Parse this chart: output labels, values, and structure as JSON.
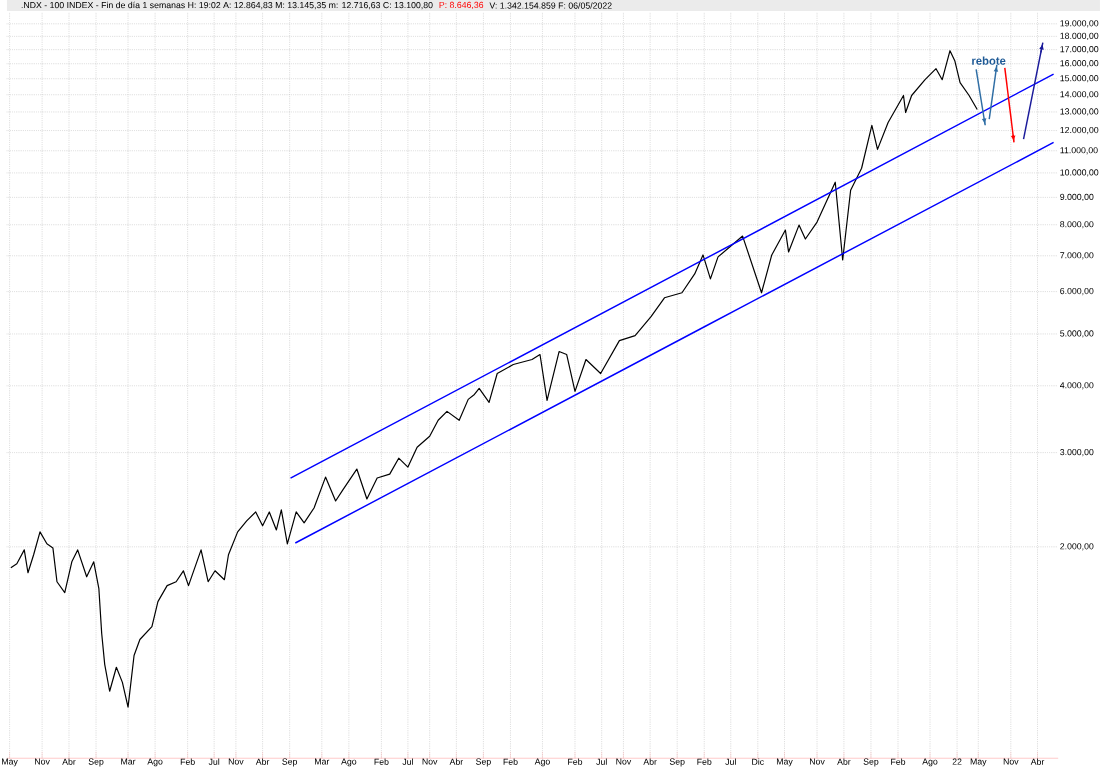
{
  "chart_data": {
    "type": "line",
    "title": ".NDX - 100 INDEX - Fin de día 1 semanas  H: 19:02  A: 12.864,83  M: 13.145,35  m: 12.716,63  C: 13.100,80",
    "annotations": [
      "P: 8.646,36",
      "V: 1.342.154.859  F: 06/05/2022",
      "rebote"
    ],
    "log": true,
    "grid": true,
    "marker": "none",
    "line_style": "solid",
    "xlim": [
      "2007-04-15",
      "2023-07-27"
    ],
    "ylim": [
      805,
      20000
    ],
    "xticks": [
      {
        "value": "2007-05-01",
        "label": "May"
      },
      {
        "value": "2007-11-01",
        "label": "Nov"
      },
      {
        "value": "2008-04-01",
        "label": "Abr"
      },
      {
        "value": "2008-09-01",
        "label": "Sep"
      },
      {
        "value": "2009-03-01",
        "label": "Mar"
      },
      {
        "value": "2009-08-01",
        "label": "Ago"
      },
      {
        "value": "2010-02-01",
        "label": "Feb"
      },
      {
        "value": "2010-07-01",
        "label": "Jul"
      },
      {
        "value": "2010-11-01",
        "label": "Nov"
      },
      {
        "value": "2011-04-01",
        "label": "Abr"
      },
      {
        "value": "2011-09-01",
        "label": "Sep"
      },
      {
        "value": "2012-03-01",
        "label": "Mar"
      },
      {
        "value": "2012-08-01",
        "label": "Ago"
      },
      {
        "value": "2013-02-01",
        "label": "Feb"
      },
      {
        "value": "2013-07-01",
        "label": "Jul"
      },
      {
        "value": "2013-11-01",
        "label": "Nov"
      },
      {
        "value": "2014-04-01",
        "label": "Abr"
      },
      {
        "value": "2014-09-01",
        "label": "Sep"
      },
      {
        "value": "2015-02-01",
        "label": "Feb"
      },
      {
        "value": "2015-08-01",
        "label": "Ago"
      },
      {
        "value": "2016-02-01",
        "label": "Feb"
      },
      {
        "value": "2016-07-01",
        "label": "Jul"
      },
      {
        "value": "2016-11-01",
        "label": "Nov"
      },
      {
        "value": "2017-04-01",
        "label": "Abr"
      },
      {
        "value": "2017-09-01",
        "label": "Sep"
      },
      {
        "value": "2018-02-01",
        "label": "Feb"
      },
      {
        "value": "2018-07-01",
        "label": "Jul"
      },
      {
        "value": "2018-12-01",
        "label": "Dic"
      },
      {
        "value": "2019-05-01",
        "label": "May"
      },
      {
        "value": "2019-11-01",
        "label": "Nov"
      },
      {
        "value": "2020-04-01",
        "label": "Abr"
      },
      {
        "value": "2020-09-01",
        "label": "Sep"
      },
      {
        "value": "2021-02-01",
        "label": "Feb"
      },
      {
        "value": "2021-08-01",
        "label": "Ago"
      },
      {
        "value": "2022-01-01",
        "label": "22"
      },
      {
        "value": "2022-05-01",
        "label": "May"
      },
      {
        "value": "2022-11-01",
        "label": "Nov"
      },
      {
        "value": "2023-04-01",
        "label": "Abr"
      }
    ],
    "yticks": [
      {
        "value": 2000,
        "label": "2.000,00"
      },
      {
        "value": 3000,
        "label": "3.000,00"
      },
      {
        "value": 4000,
        "label": "4.000,00"
      },
      {
        "value": 5000,
        "label": "5.000,00"
      },
      {
        "value": 6000,
        "label": "6.000,00"
      },
      {
        "value": 7000,
        "label": "7.000,00"
      },
      {
        "value": 8000,
        "label": "8.000,00"
      },
      {
        "value": 9000,
        "label": "9.000,00"
      },
      {
        "value": 10000,
        "label": "10.000,00"
      },
      {
        "value": 11000,
        "label": "11.000,00"
      },
      {
        "value": 12000,
        "label": "12.000,00"
      },
      {
        "value": 13000,
        "label": "13.000,00"
      },
      {
        "value": 14000,
        "label": "14.000,00"
      },
      {
        "value": 15000,
        "label": "15.000,00"
      },
      {
        "value": 16000,
        "label": "16.000,00"
      },
      {
        "value": 17000,
        "label": "17.000,00"
      },
      {
        "value": 18000,
        "label": "18.000,00"
      },
      {
        "value": 19000,
        "label": "19.000,00"
      }
    ],
    "series": [
      {
        "color": "#000000",
        "x": [
          "2007-05-08",
          "2007-06-11",
          "2007-07-23",
          "2007-08-13",
          "2007-09-14",
          "2007-10-20",
          "2007-11-28",
          "2008-01-01",
          "2008-01-24",
          "2008-03-08",
          "2008-04-17",
          "2008-05-20",
          "2008-07-10",
          "2008-08-19",
          "2008-09-17",
          "2008-10-03",
          "2008-10-20",
          "2008-11-17",
          "2008-12-25",
          "2009-01-28",
          "2009-03-01",
          "2009-04-04",
          "2009-05-07",
          "2009-07-14",
          "2009-08-17",
          "2009-10-08",
          "2009-11-28",
          "2010-01-08",
          "2010-02-06",
          "2010-04-18",
          "2010-05-28",
          "2010-07-06",
          "2010-08-28",
          "2010-09-20",
          "2010-11-11",
          "2011-01-01",
          "2011-02-21",
          "2011-04-01",
          "2011-05-09",
          "2011-06-18",
          "2011-07-16",
          "2011-08-19",
          "2011-10-08",
          "2011-11-22",
          "2012-01-17",
          "2012-03-22",
          "2012-05-18",
          "2012-06-27",
          "2012-09-15",
          "2012-11-11",
          "2013-01-08",
          "2013-03-20",
          "2013-05-10",
          "2013-07-01",
          "2013-08-22",
          "2013-11-01",
          "2013-12-19",
          "2014-02-07",
          "2014-04-17",
          "2014-06-07",
          "2014-07-12",
          "2014-08-08",
          "2014-10-03",
          "2014-11-18",
          "2015-02-17",
          "2015-06-03",
          "2015-07-18",
          "2015-08-27",
          "2015-11-03",
          "2015-12-16",
          "2016-02-01",
          "2016-04-03",
          "2016-06-25",
          "2016-10-09",
          "2017-01-06",
          "2017-04-06",
          "2017-06-21",
          "2017-09-28",
          "2017-12-09",
          "2018-01-25",
          "2018-03-08",
          "2018-04-20",
          "2018-09-06",
          "2018-12-22",
          "2019-02-18",
          "2019-05-06",
          "2019-05-24",
          "2019-07-22",
          "2019-08-27",
          "2019-11-01",
          "2020-02-12",
          "2020-03-25",
          "2020-05-09",
          "2020-07-10",
          "2020-09-06",
          "2020-10-08",
          "2020-12-07",
          "2021-03-04",
          "2021-03-16",
          "2021-04-19",
          "2021-07-04",
          "2021-09-04",
          "2021-10-09",
          "2021-11-22",
          "2021-12-19",
          "2022-01-18",
          "2022-03-10",
          "2022-04-25"
        ],
        "values": [
          1828,
          1859,
          1974,
          1789,
          1933,
          2133,
          2026,
          1991,
          1721,
          1642,
          1875,
          1974,
          1758,
          1875,
          1670,
          1377,
          1206,
          1074,
          1191,
          1116,
          1003,
          1253,
          1342,
          1419,
          1580,
          1692,
          1721,
          1804,
          1692,
          1974,
          1721,
          1804,
          1736,
          1933,
          2133,
          2236,
          2324,
          2189,
          2324,
          2151,
          2344,
          2026,
          2324,
          2217,
          2364,
          2700,
          2436,
          2553,
          2795,
          2457,
          2689,
          2735,
          2929,
          2819,
          3071,
          3219,
          3448,
          3583,
          3448,
          3773,
          3854,
          3955,
          3724,
          4217,
          4384,
          4479,
          4576,
          3757,
          4635,
          4576,
          3905,
          4479,
          4217,
          4858,
          4963,
          5385,
          5842,
          5970,
          6475,
          7026,
          6337,
          6966,
          7621,
          5970,
          7026,
          7820,
          7117,
          7990,
          7524,
          8093,
          9608,
          6877,
          9283,
          10203,
          12270,
          11067,
          12427,
          13955,
          12968,
          13955,
          14939,
          15661,
          14939,
          16921,
          16212,
          14748,
          13955,
          13136
        ]
      },
      {
        "color": "#0000ff",
        "x": [
          "2011-09-06",
          "2018-01-25",
          "2023-07-01"
        ],
        "values": [
          2688,
          6877,
          15300
        ]
      },
      {
        "color": "#0000ff",
        "x": [
          "2011-10-03",
          "2018-01-25",
          "2023-07-01"
        ],
        "values": [
          2033,
          5141,
          11400
        ]
      },
      {
        "color": "#2e6da4",
        "x": [
          "2022-04-19",
          "2022-06-09"
        ],
        "values": [
          15616,
          12277
        ]
      },
      {
        "color": "#2e6da4",
        "x": [
          "2022-07-02",
          "2022-08-14"
        ],
        "values": [
          12606,
          15921
        ]
      },
      {
        "color": "#ff0000",
        "x": [
          "2022-09-28",
          "2022-11-19"
        ],
        "values": [
          15714,
          11405
        ]
      },
      {
        "color": "#1a1a9a",
        "x": [
          "2023-01-12",
          "2023-05-01"
        ],
        "values": [
          11567,
          17518
        ]
      }
    ]
  }
}
